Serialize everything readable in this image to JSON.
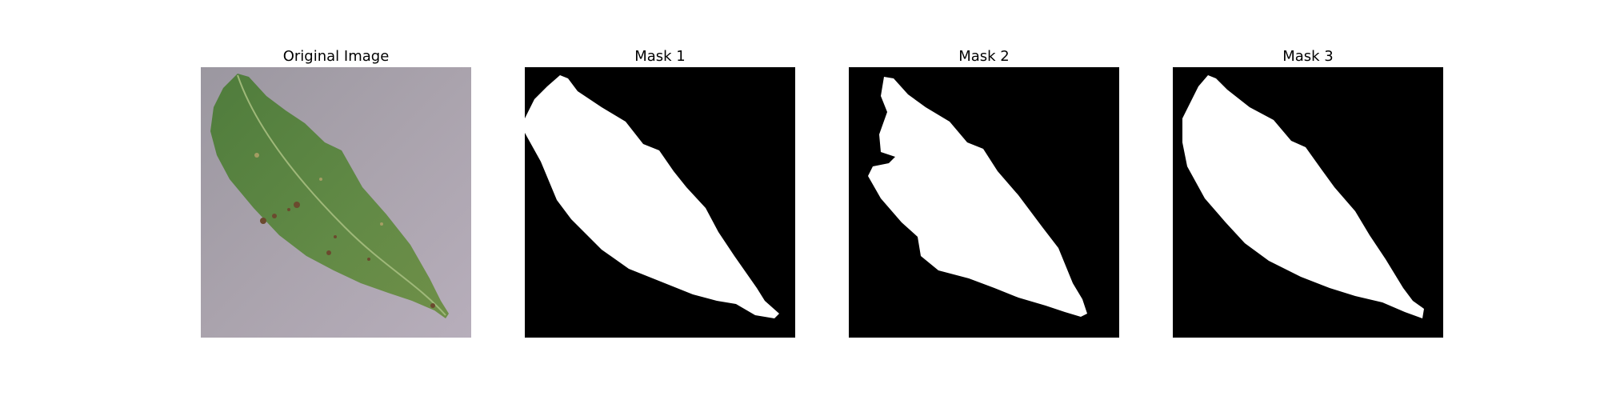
{
  "panels": [
    {
      "title": "Original Image",
      "kind": "photo"
    },
    {
      "title": "Mask 1",
      "kind": "mask"
    },
    {
      "title": "Mask 2",
      "kind": "mask"
    },
    {
      "title": "Mask 3",
      "kind": "mask"
    }
  ],
  "colors": {
    "background": "#ffffff",
    "mask_foreground": "#ffffff",
    "mask_background": "#000000",
    "photo_surface": "#a79faa",
    "leaf": "#5d8443"
  }
}
